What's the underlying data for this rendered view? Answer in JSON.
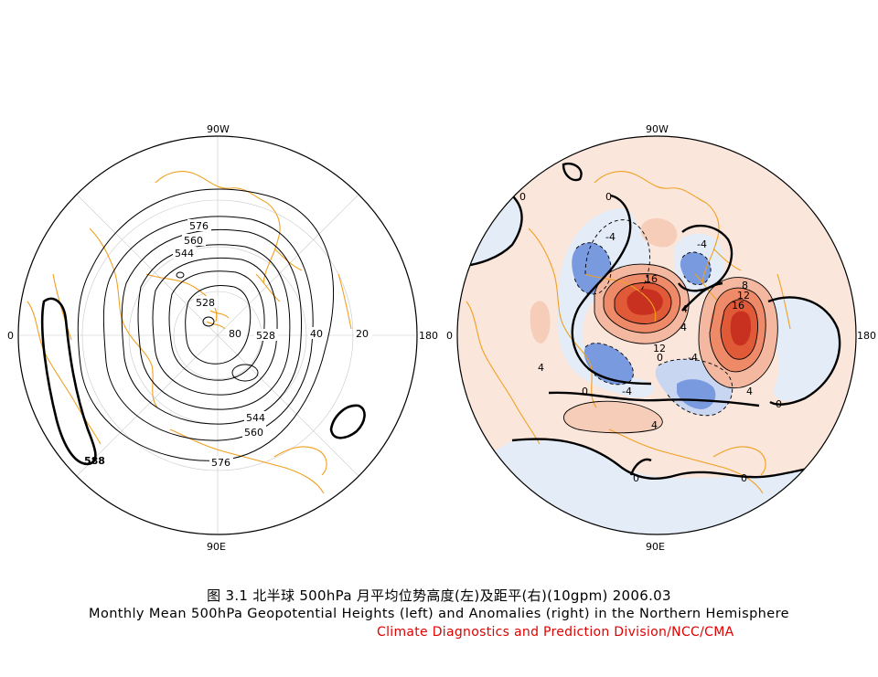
{
  "left_map": {
    "lon_labels": {
      "top": "90W",
      "bottom": "90E",
      "left": "0",
      "right": "180"
    },
    "lat_labels": [
      "80",
      "40",
      "20"
    ],
    "contour_labels": [
      "576",
      "560",
      "544",
      "528",
      "528",
      "544",
      "560",
      "576",
      "588"
    ]
  },
  "right_map": {
    "lon_labels": {
      "top": "90W",
      "bottom": "90E",
      "left": "0",
      "right": "180"
    },
    "contour_labels": [
      "0",
      "0",
      "-4",
      "-4",
      "16",
      "8",
      "12",
      "16",
      "4",
      "4",
      "12",
      "0",
      "-4",
      "-4",
      "4",
      "4",
      "0",
      "0",
      "0",
      "4",
      "0"
    ]
  },
  "caption": {
    "chinese": "图 3.1   北半球 500hPa 月平均位势高度(左)及距平(右)(10gpm)   2006.03",
    "english": "Monthly Mean 500hPa Geopotential Heights (left) and Anomalies (right) in the Northern Hemisphere",
    "source": "Climate Diagnostics and Prediction Division/NCC/CMA"
  },
  "colors": {
    "coastline": "#f0a020",
    "source_text": "#e00000",
    "positive_anomaly": "#e04020",
    "negative_anomaly": "#5078d0",
    "weak_positive": "#fbe6dc",
    "weak_negative": "#e4ecf8"
  }
}
